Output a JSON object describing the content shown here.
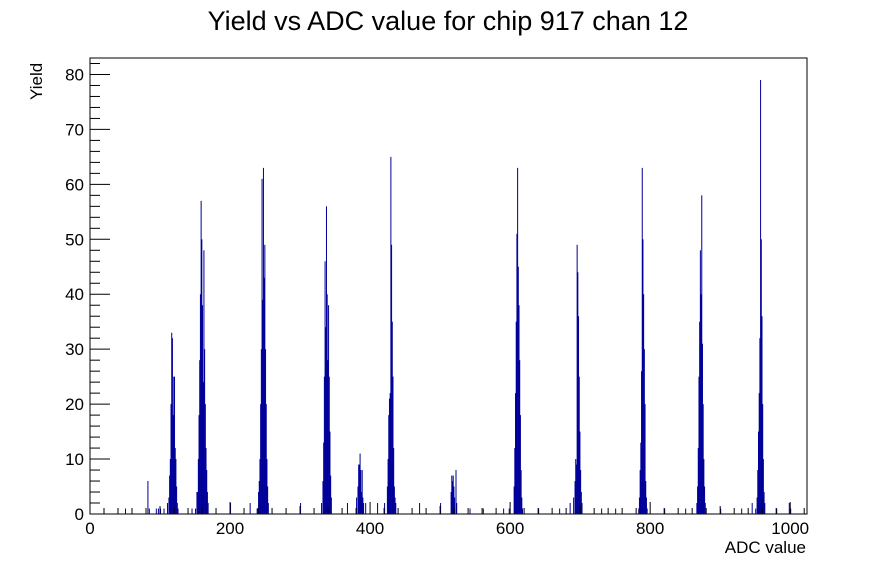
{
  "chart_data": {
    "type": "bar",
    "title": "Yield vs ADC value for chip 917 chan 12",
    "xlabel": "ADC value",
    "ylabel": "Yield",
    "xlim": [
      0,
      1024
    ],
    "ylim": [
      0,
      83
    ],
    "x_ticks": [
      0,
      200,
      400,
      600,
      800,
      1000
    ],
    "y_ticks": [
      0,
      10,
      20,
      30,
      40,
      50,
      60,
      70,
      80
    ],
    "grid": false,
    "legend": "none",
    "color": "#000099",
    "bins": [
      [
        50,
        1
      ],
      [
        82,
        6
      ],
      [
        84,
        1
      ],
      [
        94,
        1
      ],
      [
        97,
        1
      ],
      [
        100,
        1
      ],
      [
        105,
        1
      ],
      [
        110,
        2
      ],
      [
        112,
        3
      ],
      [
        113,
        7
      ],
      [
        114,
        10
      ],
      [
        115,
        20
      ],
      [
        116,
        33
      ],
      [
        117,
        32
      ],
      [
        118,
        18
      ],
      [
        119,
        25
      ],
      [
        120,
        25
      ],
      [
        121,
        12
      ],
      [
        122,
        10
      ],
      [
        123,
        5
      ],
      [
        124,
        2
      ],
      [
        125,
        1
      ],
      [
        145,
        1
      ],
      [
        150,
        1
      ],
      [
        152,
        4
      ],
      [
        153,
        4
      ],
      [
        154,
        10
      ],
      [
        155,
        18
      ],
      [
        156,
        28
      ],
      [
        157,
        40
      ],
      [
        158,
        57
      ],
      [
        159,
        50
      ],
      [
        160,
        38
      ],
      [
        161,
        24
      ],
      [
        162,
        48
      ],
      [
        163,
        30
      ],
      [
        164,
        20
      ],
      [
        165,
        12
      ],
      [
        166,
        8
      ],
      [
        167,
        4
      ],
      [
        168,
        2
      ],
      [
        200,
        2
      ],
      [
        228,
        2
      ],
      [
        238,
        1
      ],
      [
        240,
        4
      ],
      [
        241,
        6
      ],
      [
        242,
        10
      ],
      [
        243,
        20
      ],
      [
        244,
        30
      ],
      [
        245,
        61
      ],
      [
        246,
        39
      ],
      [
        247,
        63
      ],
      [
        248,
        43
      ],
      [
        249,
        49
      ],
      [
        250,
        30
      ],
      [
        251,
        20
      ],
      [
        252,
        10
      ],
      [
        253,
        5
      ],
      [
        254,
        2
      ],
      [
        300,
        2
      ],
      [
        330,
        2
      ],
      [
        332,
        6
      ],
      [
        333,
        13
      ],
      [
        334,
        25
      ],
      [
        335,
        46
      ],
      [
        336,
        34
      ],
      [
        337,
        56
      ],
      [
        338,
        40
      ],
      [
        339,
        28
      ],
      [
        340,
        38
      ],
      [
        341,
        25
      ],
      [
        342,
        15
      ],
      [
        343,
        7
      ],
      [
        344,
        3
      ],
      [
        367,
        2
      ],
      [
        380,
        3
      ],
      [
        382,
        5
      ],
      [
        383,
        9
      ],
      [
        384,
        9
      ],
      [
        385,
        11
      ],
      [
        386,
        8
      ],
      [
        387,
        4
      ],
      [
        388,
        8
      ],
      [
        389,
        3
      ],
      [
        390,
        2
      ],
      [
        393,
        2
      ],
      [
        410,
        2
      ],
      [
        420,
        2
      ],
      [
        424,
        5
      ],
      [
        425,
        10
      ],
      [
        426,
        18
      ],
      [
        427,
        21
      ],
      [
        428,
        22
      ],
      [
        429,
        65
      ],
      [
        430,
        49
      ],
      [
        431,
        35
      ],
      [
        432,
        25
      ],
      [
        433,
        12
      ],
      [
        434,
        5
      ],
      [
        435,
        3
      ],
      [
        436,
        2
      ],
      [
        470,
        2
      ],
      [
        500,
        2
      ],
      [
        515,
        4
      ],
      [
        516,
        7
      ],
      [
        517,
        6
      ],
      [
        518,
        7
      ],
      [
        519,
        5
      ],
      [
        520,
        3
      ],
      [
        522,
        8
      ],
      [
        523,
        2
      ],
      [
        542,
        1
      ],
      [
        561,
        1
      ],
      [
        590,
        1
      ],
      [
        598,
        1
      ],
      [
        605,
        5
      ],
      [
        606,
        12
      ],
      [
        607,
        22
      ],
      [
        608,
        35
      ],
      [
        609,
        51
      ],
      [
        610,
        63
      ],
      [
        611,
        45
      ],
      [
        612,
        38
      ],
      [
        613,
        28
      ],
      [
        614,
        18
      ],
      [
        615,
        8
      ],
      [
        616,
        3
      ],
      [
        617,
        1
      ],
      [
        640,
        1
      ],
      [
        670,
        1
      ],
      [
        685,
        2
      ],
      [
        690,
        3
      ],
      [
        692,
        6
      ],
      [
        693,
        10
      ],
      [
        694,
        9
      ],
      [
        695,
        49
      ],
      [
        696,
        44
      ],
      [
        697,
        36
      ],
      [
        698,
        25
      ],
      [
        699,
        15
      ],
      [
        700,
        8
      ],
      [
        701,
        4
      ],
      [
        702,
        2
      ],
      [
        730,
        1
      ],
      [
        750,
        1
      ],
      [
        783,
        1
      ],
      [
        784,
        3
      ],
      [
        785,
        8
      ],
      [
        786,
        13
      ],
      [
        787,
        26
      ],
      [
        788,
        63
      ],
      [
        789,
        50
      ],
      [
        790,
        40
      ],
      [
        791,
        30
      ],
      [
        792,
        20
      ],
      [
        793,
        6
      ],
      [
        794,
        3
      ],
      [
        795,
        1
      ],
      [
        820,
        1
      ],
      [
        850,
        1
      ],
      [
        866,
        2
      ],
      [
        867,
        5
      ],
      [
        868,
        12
      ],
      [
        869,
        25
      ],
      [
        870,
        35
      ],
      [
        871,
        48
      ],
      [
        872,
        40
      ],
      [
        873,
        58
      ],
      [
        874,
        31
      ],
      [
        875,
        20
      ],
      [
        876,
        10
      ],
      [
        877,
        5
      ],
      [
        878,
        2
      ],
      [
        900,
        1
      ],
      [
        930,
        1
      ],
      [
        945,
        2
      ],
      [
        950,
        1
      ],
      [
        952,
        3
      ],
      [
        953,
        8
      ],
      [
        954,
        15
      ],
      [
        955,
        22
      ],
      [
        956,
        32
      ],
      [
        957,
        79
      ],
      [
        958,
        50
      ],
      [
        959,
        36
      ],
      [
        960,
        20
      ],
      [
        961,
        10
      ],
      [
        962,
        4
      ],
      [
        963,
        2
      ],
      [
        980,
        1
      ],
      [
        998,
        2
      ],
      [
        1000,
        1
      ]
    ]
  }
}
